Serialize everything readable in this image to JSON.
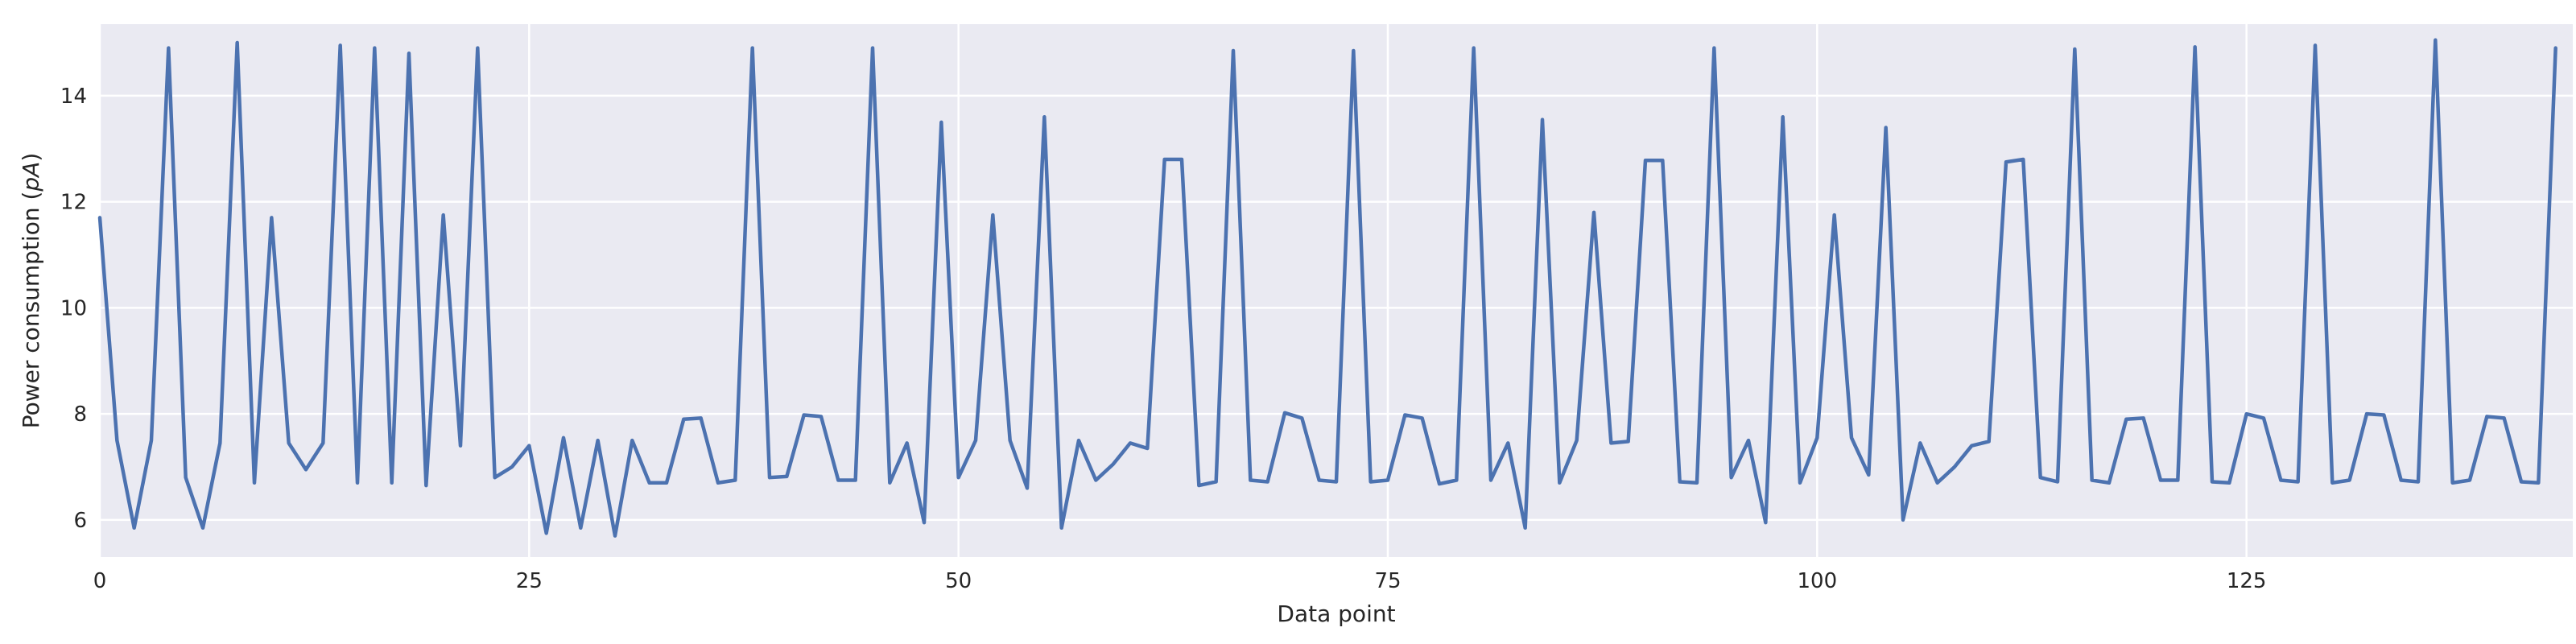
{
  "chart_data": {
    "type": "line",
    "xlabel": "Data point",
    "ylabel_text": "Power consumption (",
    "ylabel_unit": "pA",
    "ylabel_close": ")",
    "xlim": [
      0,
      144
    ],
    "ylim": [
      5.3,
      15.35
    ],
    "xticks": [
      0,
      25,
      50,
      75,
      100,
      125
    ],
    "xtick_labels": [
      "0",
      "25",
      "50",
      "75",
      "100",
      "125"
    ],
    "yticks": [
      6,
      8,
      10,
      12,
      14
    ],
    "ytick_labels": [
      "6",
      "8",
      "10",
      "12",
      "14"
    ],
    "grid": true,
    "colors": {
      "line": "#4c72b0",
      "plot_background": "#eaeaf2",
      "grid": "#ffffff",
      "text": "#262626"
    },
    "series": [
      {
        "values": [
          11.7,
          7.5,
          5.85,
          7.5,
          14.9,
          6.8,
          5.85,
          7.45,
          15.0,
          6.7,
          11.7,
          7.45,
          6.95,
          7.45,
          14.95,
          6.7,
          14.9,
          6.7,
          14.8,
          6.65,
          11.75,
          7.4,
          14.9,
          6.8,
          7.0,
          7.4,
          5.75,
          7.55,
          5.85,
          7.5,
          5.7,
          7.5,
          6.7,
          6.7,
          7.9,
          7.92,
          6.7,
          6.75,
          14.9,
          6.8,
          6.82,
          7.98,
          7.95,
          6.75,
          6.75,
          14.9,
          6.7,
          7.45,
          5.95,
          13.5,
          6.8,
          7.5,
          11.75,
          7.5,
          6.6,
          13.6,
          5.85,
          7.5,
          6.75,
          7.05,
          7.45,
          7.35,
          12.8,
          12.8,
          6.65,
          6.72,
          14.85,
          6.75,
          6.72,
          8.02,
          7.92,
          6.75,
          6.72,
          14.85,
          6.72,
          6.75,
          7.98,
          7.92,
          6.68,
          6.75,
          14.9,
          6.75,
          7.45,
          5.85,
          13.55,
          6.7,
          7.5,
          11.8,
          7.45,
          7.48,
          12.78,
          12.78,
          6.72,
          6.7,
          14.9,
          6.8,
          7.5,
          5.95,
          13.6,
          6.7,
          7.55,
          11.75,
          7.55,
          6.85,
          13.4,
          6.0,
          7.45,
          6.7,
          7.0,
          7.4,
          7.48,
          12.75,
          12.8,
          6.8,
          6.72,
          14.88,
          6.75,
          6.7,
          7.9,
          7.92,
          6.75,
          6.75,
          14.92,
          6.72,
          6.7,
          8.0,
          7.92,
          6.75,
          6.72,
          14.95,
          6.7,
          6.75,
          8.0,
          7.98,
          6.75,
          6.72,
          15.05,
          6.7,
          6.75,
          7.95,
          7.92,
          6.72,
          6.7,
          14.9
        ]
      }
    ]
  }
}
